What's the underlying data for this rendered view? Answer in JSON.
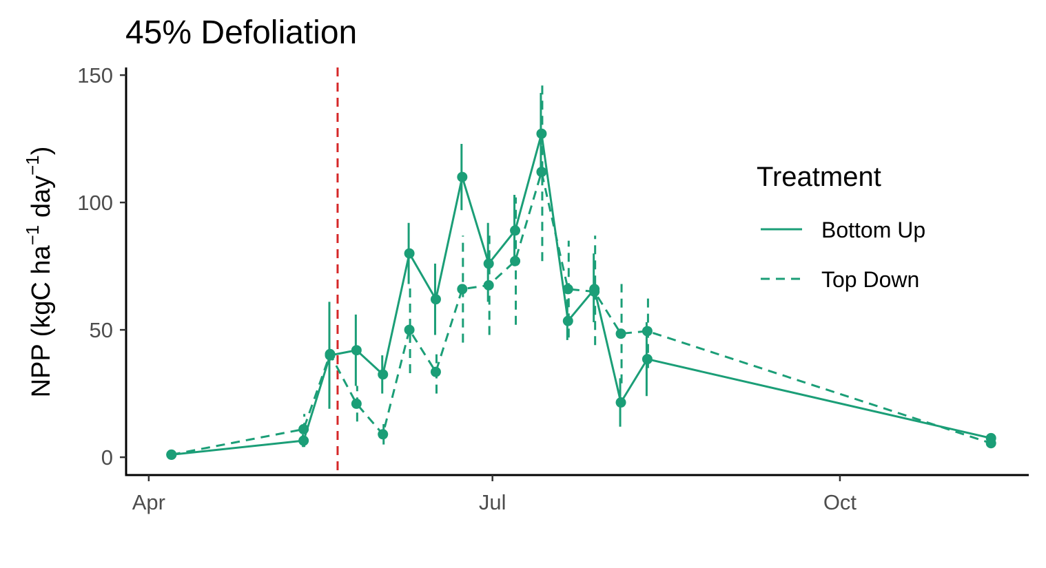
{
  "chart_data": {
    "type": "line",
    "title": "45% Defoliation",
    "ylabel": {
      "prefix": "NPP (kgC ha",
      "sup1": "−1",
      "middle": " day",
      "sup2": "−1",
      "suffix": ")"
    },
    "xlabel": "",
    "x_ticks": [
      {
        "date": "2020-04-01",
        "label": "Apr"
      },
      {
        "date": "2020-07-01",
        "label": "Jul"
      },
      {
        "date": "2020-10-01",
        "label": "Oct"
      }
    ],
    "y_ticks": [
      0,
      50,
      100,
      150
    ],
    "xlim": [
      "2020-03-26",
      "2020-11-20"
    ],
    "ylim": [
      -7,
      153
    ],
    "color": "#1b9e77",
    "vline": {
      "date": "2020-05-21",
      "color": "#d62728",
      "style": "dashed"
    },
    "legend": {
      "title": "Treatment",
      "position": "right"
    },
    "series": [
      {
        "name": "Bottom Up",
        "style": "solid",
        "points": [
          {
            "x": "2020-04-07",
            "y": 1,
            "lo": 0,
            "hi": 2
          },
          {
            "x": "2020-05-12",
            "y": 6.5,
            "lo": 4,
            "hi": 9
          },
          {
            "x": "2020-05-19",
            "y": 40,
            "lo": 19,
            "hi": 61
          },
          {
            "x": "2020-05-26",
            "y": 42,
            "lo": 28,
            "hi": 56
          },
          {
            "x": "2020-06-02",
            "y": 32.5,
            "lo": 25,
            "hi": 40
          },
          {
            "x": "2020-06-09",
            "y": 80,
            "lo": 68,
            "hi": 92
          },
          {
            "x": "2020-06-16",
            "y": 62,
            "lo": 48,
            "hi": 76
          },
          {
            "x": "2020-06-23",
            "y": 110,
            "lo": 97,
            "hi": 123
          },
          {
            "x": "2020-06-30",
            "y": 76,
            "lo": 61,
            "hi": 92
          },
          {
            "x": "2020-07-07",
            "y": 89,
            "lo": 75,
            "hi": 103
          },
          {
            "x": "2020-07-14",
            "y": 127,
            "lo": 111,
            "hi": 143
          },
          {
            "x": "2020-07-21",
            "y": 53.5,
            "lo": 46,
            "hi": 62
          },
          {
            "x": "2020-07-28",
            "y": 66,
            "lo": 53,
            "hi": 80
          },
          {
            "x": "2020-08-04",
            "y": 21.5,
            "lo": 12,
            "hi": 31
          },
          {
            "x": "2020-08-11",
            "y": 38.5,
            "lo": 24,
            "hi": 53
          },
          {
            "x": "2020-11-10",
            "y": 7.5,
            "lo": 6,
            "hi": 9
          }
        ]
      },
      {
        "name": "Top Down",
        "style": "dashed",
        "points": [
          {
            "x": "2020-04-07",
            "y": 1,
            "lo": 0,
            "hi": 2
          },
          {
            "x": "2020-05-12",
            "y": 11,
            "lo": 4,
            "hi": 17
          },
          {
            "x": "2020-05-19",
            "y": 40.5,
            "lo": 38,
            "hi": 43
          },
          {
            "x": "2020-05-26",
            "y": 21,
            "lo": 14,
            "hi": 28
          },
          {
            "x": "2020-06-02",
            "y": 9,
            "lo": 5,
            "hi": 13
          },
          {
            "x": "2020-06-09",
            "y": 50,
            "lo": 33,
            "hi": 67
          },
          {
            "x": "2020-06-16",
            "y": 33.5,
            "lo": 25,
            "hi": 42
          },
          {
            "x": "2020-06-23",
            "y": 66,
            "lo": 45,
            "hi": 87
          },
          {
            "x": "2020-06-30",
            "y": 67.5,
            "lo": 48,
            "hi": 87
          },
          {
            "x": "2020-07-07",
            "y": 77,
            "lo": 52,
            "hi": 102
          },
          {
            "x": "2020-07-14",
            "y": 112,
            "lo": 77,
            "hi": 148
          },
          {
            "x": "2020-07-21",
            "y": 66,
            "lo": 47,
            "hi": 85
          },
          {
            "x": "2020-07-28",
            "y": 65,
            "lo": 44,
            "hi": 87
          },
          {
            "x": "2020-08-04",
            "y": 48.5,
            "lo": 29,
            "hi": 68
          },
          {
            "x": "2020-08-11",
            "y": 49.5,
            "lo": 35,
            "hi": 64
          },
          {
            "x": "2020-11-10",
            "y": 5.5,
            "lo": 4,
            "hi": 7
          }
        ]
      }
    ]
  }
}
